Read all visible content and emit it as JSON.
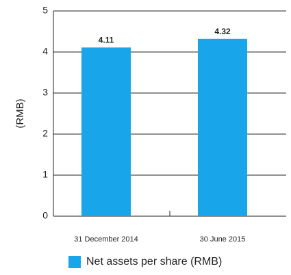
{
  "chart_data": {
    "type": "bar",
    "y_label": "(RMB)",
    "categories": [
      "31 December 2014",
      "30 June 2015"
    ],
    "series": [
      {
        "name": "Net assets per share (RMB)",
        "color": "#18a5ea",
        "values": [
          4.11,
          4.32
        ]
      }
    ],
    "ylim": [
      0,
      5
    ],
    "yticks": [
      0,
      1,
      2,
      3,
      4,
      5
    ],
    "grid": true,
    "legend": "bottom"
  }
}
